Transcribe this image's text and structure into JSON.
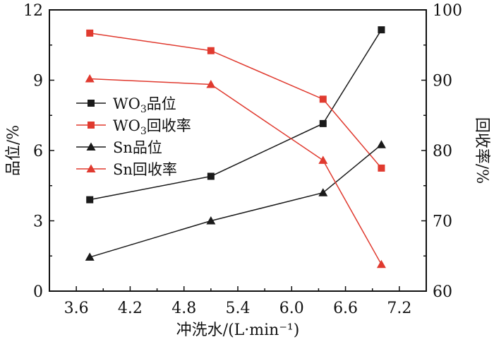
{
  "chart_data": {
    "type": "line",
    "xlabel": "冲洗水/(L·min⁻¹)",
    "ylabel_left": "品位/%",
    "ylabel_right": "回收率/%",
    "xlim": [
      3.3,
      7.5
    ],
    "ylim_left": [
      0,
      12
    ],
    "ylim_right": [
      60,
      100
    ],
    "x_ticks": [
      3.6,
      4.2,
      4.8,
      5.4,
      6.0,
      6.6,
      7.2
    ],
    "x_tick_labels": [
      "3.6",
      "4.2",
      "4.8",
      "5.4",
      "6.0",
      "6.6",
      "7.2"
    ],
    "y_left_ticks": [
      0,
      3,
      6,
      9,
      12
    ],
    "y_left_tick_labels": [
      "0",
      "3",
      "6",
      "9",
      "12"
    ],
    "y_right_ticks": [
      60,
      70,
      80,
      90,
      100
    ],
    "y_right_tick_labels": [
      "60",
      "70",
      "80",
      "90",
      "100"
    ],
    "legend_position": "left-middle",
    "series": [
      {
        "name": "WO3品位",
        "legend_main": "WO",
        "legend_sub": "3",
        "legend_tail": "品位",
        "axis": "left",
        "marker": "square",
        "color": "#1a1a1a",
        "x": [
          3.75,
          5.1,
          6.35,
          7.0
        ],
        "values": [
          3.9,
          4.9,
          7.15,
          11.15
        ]
      },
      {
        "name": "WO3回收率",
        "legend_main": "WO",
        "legend_sub": "3",
        "legend_tail": "回收率",
        "axis": "right",
        "marker": "square",
        "color": "#e03a2f",
        "x": [
          3.75,
          5.1,
          6.35,
          7.0
        ],
        "values": [
          96.7,
          94.2,
          87.3,
          77.5
        ]
      },
      {
        "name": "Sn品位",
        "legend_main": "Sn品位",
        "legend_sub": "",
        "legend_tail": "",
        "axis": "left",
        "marker": "triangle",
        "color": "#1a1a1a",
        "x": [
          3.75,
          5.1,
          6.35,
          7.0
        ],
        "values": [
          1.45,
          3.0,
          4.2,
          6.25
        ]
      },
      {
        "name": "Sn回收率",
        "legend_main": "Sn回收率",
        "legend_sub": "",
        "legend_tail": "",
        "axis": "right",
        "marker": "triangle",
        "color": "#e03a2f",
        "x": [
          3.75,
          5.1,
          6.35,
          7.0
        ],
        "values": [
          90.2,
          89.4,
          78.6,
          63.8
        ]
      }
    ]
  }
}
